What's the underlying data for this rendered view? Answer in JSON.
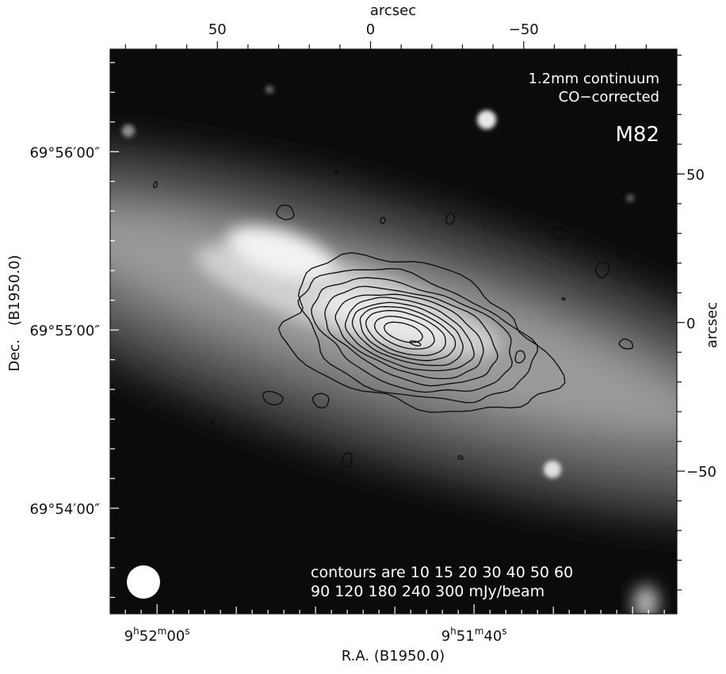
{
  "chart_data": {
    "type": "contour",
    "title": "M82",
    "annotation_lines": [
      "1.2mm continuum",
      "CO−corrected"
    ],
    "contour_note_lines": [
      "contours are 10 15 20 30 40 50 60",
      "90 120 180 240 300 mJy/beam"
    ],
    "contour_levels_mJy_per_beam": [
      10,
      15,
      20,
      30,
      40,
      50,
      60,
      90,
      120,
      180,
      240,
      300
    ],
    "xlabel": "R.A. (B1950.0)",
    "ylabel": "Dec.   (B1950.0)",
    "top_axis_label": "arcsec",
    "right_axis_label": "arcsec",
    "x_ticks": [
      {
        "h": "9",
        "m": "52",
        "s": "00",
        "arcsec": 69.7
      },
      {
        "h": "9",
        "m": "51",
        "s": "40",
        "arcsec": -33.8
      }
    ],
    "y_ticks": [
      "69°56′00″",
      "69°55′00″",
      "69°54′00″"
    ],
    "y_tick_arcsec": [
      57.5,
      -2.5,
      -62.5
    ],
    "top_ticks": [
      "50",
      "0",
      "−50"
    ],
    "top_tick_values": [
      50,
      0,
      -50
    ],
    "right_ticks": [
      "50",
      "0",
      "−50"
    ],
    "right_tick_values": [
      50,
      0,
      -50
    ],
    "x_range_arcsec": [
      85,
      -100
    ],
    "y_range_arcsec": [
      92,
      -98
    ],
    "background": "grayscale optical image",
    "beam_marker": "white filled circle"
  },
  "colors": {
    "contour": "#0a0a0a",
    "overlay_text": "#ffffff",
    "axis_text": "#111111"
  }
}
